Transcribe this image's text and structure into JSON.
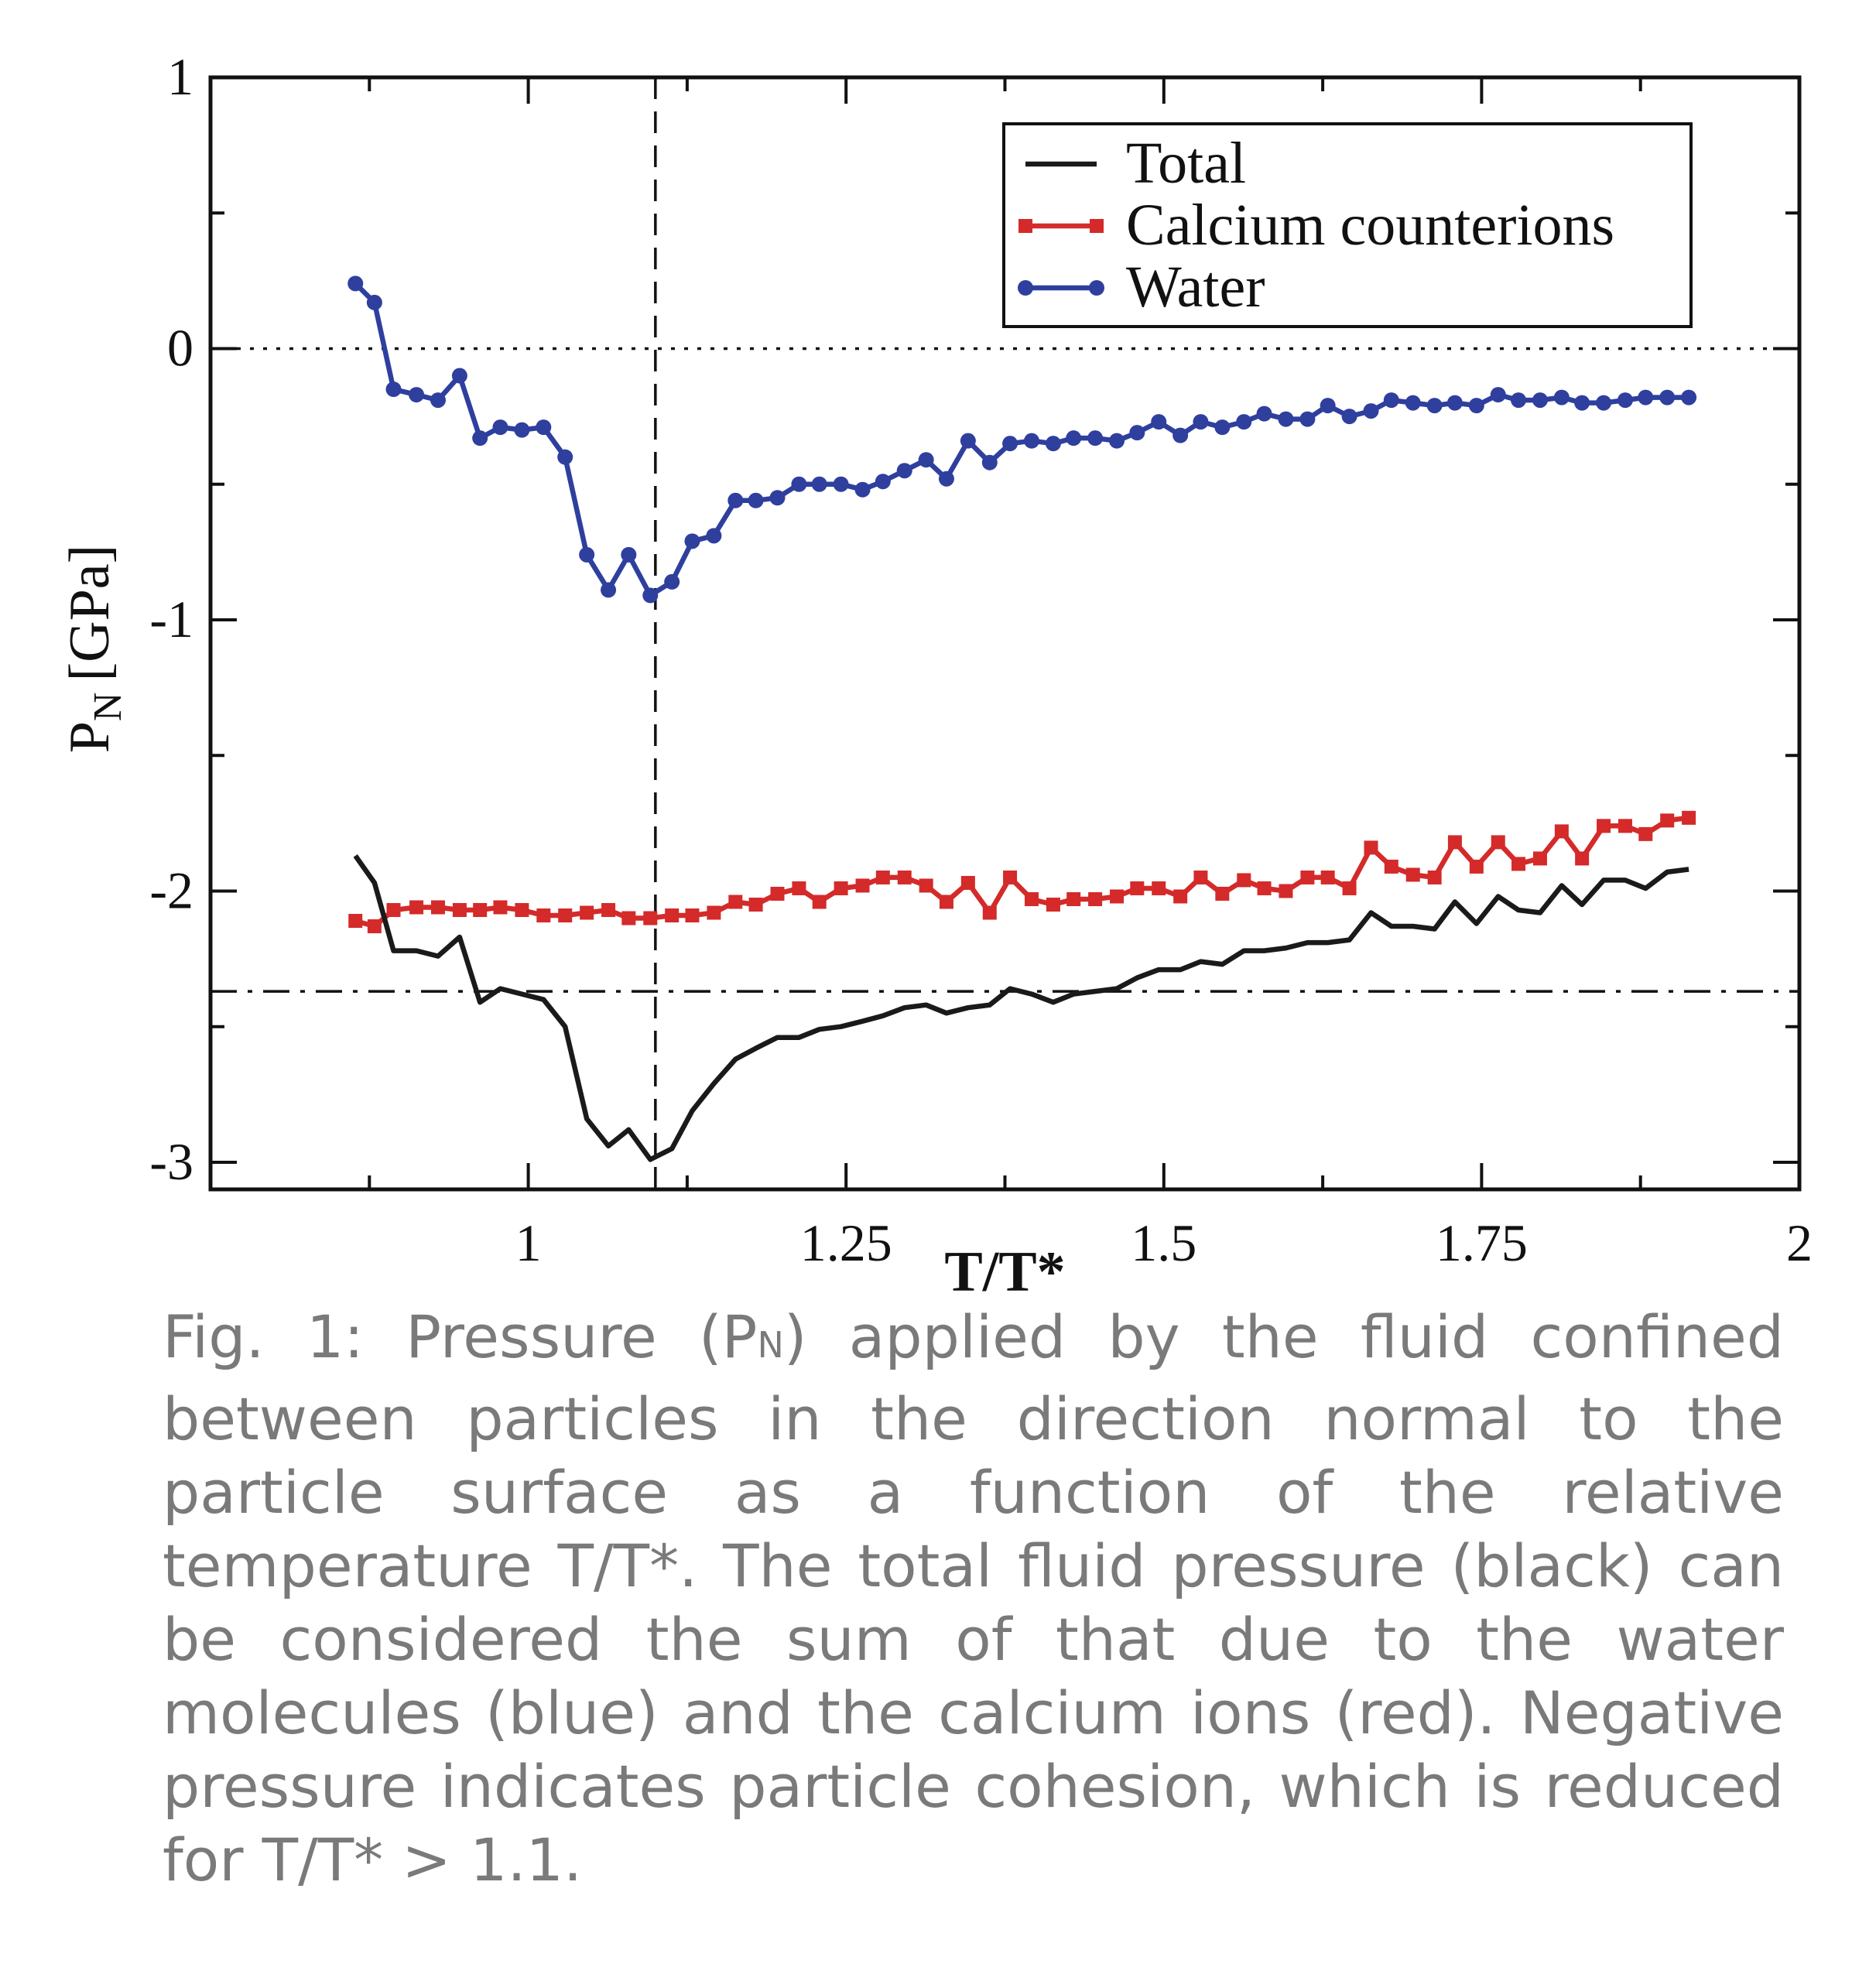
{
  "chart_data": {
    "type": "line",
    "xlabel": "T/T*",
    "ylabel_main": "P",
    "ylabel_sub": "N",
    "ylabel_unit": "[GPa]",
    "xlim": [
      0.75,
      2.0
    ],
    "ylim": [
      -3.1,
      1.0
    ],
    "xticks": [
      {
        "value": 1,
        "label": "1"
      },
      {
        "value": 1.25,
        "label": "1.25"
      },
      {
        "value": 1.5,
        "label": "1.5"
      },
      {
        "value": 1.75,
        "label": "1.75"
      },
      {
        "value": 2,
        "label": "2"
      }
    ],
    "yticks": [
      {
        "value": 1,
        "label": "1"
      },
      {
        "value": 0,
        "label": "0"
      },
      {
        "value": -1,
        "label": "-1"
      },
      {
        "value": -2,
        "label": "-2"
      },
      {
        "value": -3,
        "label": "-3"
      }
    ],
    "xminor": [
      0.875,
      1.125,
      1.375,
      1.625,
      1.875
    ],
    "yminor": [
      0.5,
      -0.5,
      -1.5,
      -2.5
    ],
    "reference_lines": [
      {
        "orientation": "vertical",
        "value": 1.1,
        "style": "dashed"
      },
      {
        "orientation": "horizontal",
        "value": 0,
        "style": "dotted"
      },
      {
        "orientation": "horizontal",
        "value": -2.37,
        "style": "dash-dot"
      }
    ],
    "legend_position": "top-right",
    "series": [
      {
        "name": "Total",
        "color": "#1a1a1a",
        "marker": "none",
        "x": [
          0.864,
          0.879,
          0.894,
          0.912,
          0.929,
          0.946,
          0.962,
          0.978,
          0.995,
          1.012,
          1.029,
          1.046,
          1.063,
          1.079,
          1.096,
          1.113,
          1.129,
          1.146,
          1.163,
          1.179,
          1.196,
          1.213,
          1.229,
          1.246,
          1.263,
          1.279,
          1.296,
          1.313,
          1.329,
          1.346,
          1.363,
          1.379,
          1.396,
          1.413,
          1.429,
          1.446,
          1.463,
          1.479,
          1.496,
          1.513,
          1.529,
          1.546,
          1.563,
          1.579,
          1.596,
          1.613,
          1.629,
          1.646,
          1.663,
          1.679,
          1.696,
          1.713,
          1.729,
          1.746,
          1.763,
          1.779,
          1.796,
          1.813,
          1.829,
          1.846,
          1.863,
          1.879,
          1.896,
          1.913
        ],
        "y": [
          -1.87,
          -1.97,
          -2.22,
          -2.22,
          -2.24,
          -2.17,
          -2.41,
          -2.36,
          -2.38,
          -2.4,
          -2.5,
          -2.84,
          -2.94,
          -2.88,
          -2.99,
          -2.95,
          -2.81,
          -2.71,
          -2.62,
          -2.58,
          -2.54,
          -2.54,
          -2.51,
          -2.5,
          -2.48,
          -2.46,
          -2.43,
          -2.42,
          -2.45,
          -2.43,
          -2.42,
          -2.36,
          -2.38,
          -2.41,
          -2.38,
          -2.37,
          -2.36,
          -2.32,
          -2.29,
          -2.29,
          -2.26,
          -2.27,
          -2.22,
          -2.22,
          -2.21,
          -2.19,
          -2.19,
          -2.18,
          -2.08,
          -2.13,
          -2.13,
          -2.14,
          -2.04,
          -2.12,
          -2.02,
          -2.07,
          -2.08,
          -1.98,
          -2.05,
          -1.96,
          -1.96,
          -1.99,
          -1.93,
          -1.92
        ]
      },
      {
        "name": "Calcium counterions",
        "color": "#d42a2a",
        "marker": "square",
        "x": [
          0.864,
          0.879,
          0.894,
          0.912,
          0.929,
          0.946,
          0.962,
          0.978,
          0.995,
          1.012,
          1.029,
          1.046,
          1.063,
          1.079,
          1.096,
          1.113,
          1.129,
          1.146,
          1.163,
          1.179,
          1.196,
          1.213,
          1.229,
          1.246,
          1.263,
          1.279,
          1.296,
          1.313,
          1.329,
          1.346,
          1.363,
          1.379,
          1.396,
          1.413,
          1.429,
          1.446,
          1.463,
          1.479,
          1.496,
          1.513,
          1.529,
          1.546,
          1.563,
          1.579,
          1.596,
          1.613,
          1.629,
          1.646,
          1.663,
          1.679,
          1.696,
          1.713,
          1.729,
          1.746,
          1.763,
          1.779,
          1.796,
          1.813,
          1.829,
          1.846,
          1.863,
          1.879,
          1.896,
          1.913
        ],
        "y": [
          -2.11,
          -2.13,
          -2.07,
          -2.06,
          -2.06,
          -2.07,
          -2.07,
          -2.06,
          -2.07,
          -2.09,
          -2.09,
          -2.08,
          -2.07,
          -2.1,
          -2.1,
          -2.09,
          -2.09,
          -2.08,
          -2.04,
          -2.05,
          -2.01,
          -1.99,
          -2.04,
          -1.99,
          -1.98,
          -1.95,
          -1.95,
          -1.98,
          -2.04,
          -1.97,
          -2.08,
          -1.95,
          -2.03,
          -2.05,
          -2.03,
          -2.03,
          -2.02,
          -1.99,
          -1.99,
          -2.02,
          -1.95,
          -2.01,
          -1.96,
          -1.99,
          -2.0,
          -1.95,
          -1.95,
          -1.99,
          -1.84,
          -1.91,
          -1.94,
          -1.95,
          -1.82,
          -1.91,
          -1.82,
          -1.9,
          -1.88,
          -1.78,
          -1.88,
          -1.76,
          -1.76,
          -1.79,
          -1.74,
          -1.73
        ]
      },
      {
        "name": "Water",
        "color": "#2f3f9e",
        "marker": "circle",
        "x": [
          0.864,
          0.879,
          0.894,
          0.912,
          0.929,
          0.946,
          0.962,
          0.978,
          0.995,
          1.012,
          1.029,
          1.046,
          1.063,
          1.079,
          1.096,
          1.113,
          1.129,
          1.146,
          1.163,
          1.179,
          1.196,
          1.213,
          1.229,
          1.246,
          1.263,
          1.279,
          1.296,
          1.313,
          1.329,
          1.346,
          1.363,
          1.379,
          1.396,
          1.413,
          1.429,
          1.446,
          1.463,
          1.479,
          1.496,
          1.513,
          1.529,
          1.546,
          1.563,
          1.579,
          1.596,
          1.613,
          1.629,
          1.646,
          1.663,
          1.679,
          1.696,
          1.713,
          1.729,
          1.746,
          1.763,
          1.779,
          1.796,
          1.813,
          1.829,
          1.846,
          1.863,
          1.879,
          1.896,
          1.913
        ],
        "y": [
          0.24,
          0.17,
          -0.15,
          -0.17,
          -0.19,
          -0.1,
          -0.33,
          -0.29,
          -0.3,
          -0.29,
          -0.4,
          -0.76,
          -0.89,
          -0.76,
          -0.91,
          -0.86,
          -0.71,
          -0.69,
          -0.56,
          -0.56,
          -0.55,
          -0.5,
          -0.5,
          -0.5,
          -0.52,
          -0.49,
          -0.45,
          -0.41,
          -0.48,
          -0.34,
          -0.42,
          -0.35,
          -0.34,
          -0.35,
          -0.33,
          -0.33,
          -0.34,
          -0.31,
          -0.27,
          -0.32,
          -0.27,
          -0.29,
          -0.27,
          -0.24,
          -0.26,
          -0.26,
          -0.21,
          -0.25,
          -0.23,
          -0.19,
          -0.2,
          -0.21,
          -0.2,
          -0.21,
          -0.17,
          -0.19,
          -0.19,
          -0.18,
          -0.2,
          -0.2,
          -0.19,
          -0.18,
          -0.18,
          -0.18
        ]
      }
    ]
  },
  "caption": {
    "prefix": "Fig. 1: Pressure (P",
    "sub": "N",
    "body": ") applied by the fluid confined between particles in the direction normal to the particle surface as a function of the relative temperature T/T*. The total fluid pressure (black) can be considered the sum of that due to the water molecules (blue) and the calcium ions (red). Negative pressure indicates particle cohesion, which is reduced for T/T* > 1.1."
  }
}
